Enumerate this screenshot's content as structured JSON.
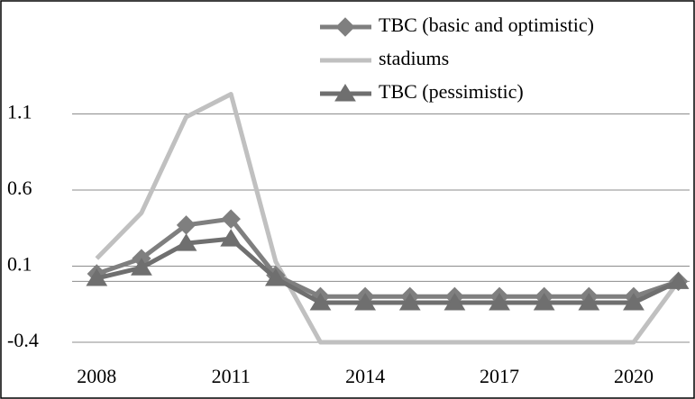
{
  "chart_data": {
    "type": "line",
    "x": [
      2008,
      2009,
      2010,
      2011,
      2012,
      2013,
      2014,
      2015,
      2016,
      2017,
      2018,
      2019,
      2020,
      2021
    ],
    "xlim": [
      2007.45,
      2021.25
    ],
    "xticks": [
      2008,
      2011,
      2014,
      2017,
      2020
    ],
    "ylim": [
      -0.4,
      1.6
    ],
    "yticks": [
      -0.4,
      0.1,
      0.6,
      1.1
    ],
    "grid": true,
    "legend": "top",
    "series": [
      {
        "name": "TBC (basic and optimistic)",
        "color": "#7f7f7f",
        "marker": "diamond",
        "values": [
          0.05,
          0.15,
          0.37,
          0.41,
          0.04,
          -0.1,
          -0.1,
          -0.1,
          -0.1,
          -0.1,
          -0.1,
          -0.1,
          -0.1,
          0
        ]
      },
      {
        "name": "stadiums",
        "color": "#c0c0c0",
        "marker": "none",
        "values": [
          0.15,
          0.45,
          1.08,
          1.23,
          0.13,
          -0.4,
          -0.4,
          -0.4,
          -0.4,
          -0.4,
          -0.4,
          -0.4,
          -0.4,
          0
        ]
      },
      {
        "name": "TBC (pessimistic)",
        "color": "#6f6f6f",
        "marker": "triangle",
        "values": [
          0.02,
          0.09,
          0.25,
          0.28,
          0.02,
          -0.14,
          -0.14,
          -0.14,
          -0.14,
          -0.14,
          -0.14,
          -0.14,
          -0.14,
          0
        ]
      }
    ]
  }
}
